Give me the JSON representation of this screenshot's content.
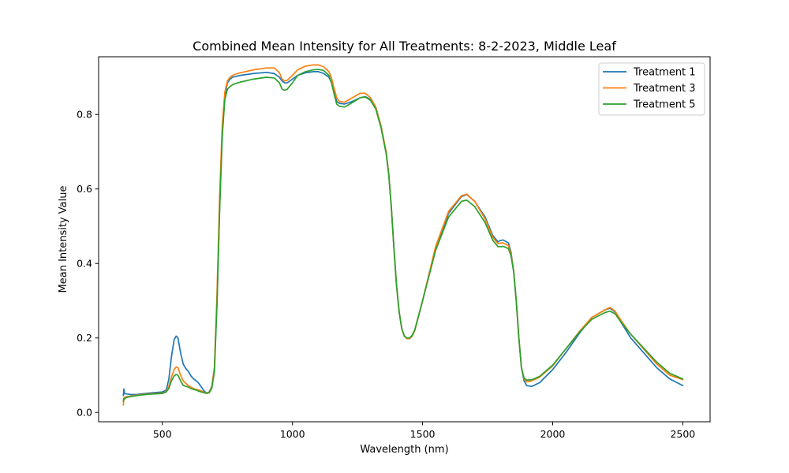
{
  "chart_data": {
    "type": "line",
    "title": "Combined Mean Intensity for All Treatments: 8-2-2023, Middle Leaf",
    "xlabel": "Wavelength (nm)",
    "ylabel": "Mean Intensity Value",
    "xlim": [
      255,
      2605
    ],
    "ylim": [
      -0.025,
      0.955
    ],
    "xticks": [
      500,
      1000,
      1500,
      2000,
      2500
    ],
    "xtick_labels": [
      "500",
      "1000",
      "1500",
      "2000",
      "2500"
    ],
    "yticks": [
      0.0,
      0.2,
      0.4,
      0.6,
      0.8
    ],
    "ytick_labels": [
      "0.0",
      "0.2",
      "0.4",
      "0.6",
      "0.8"
    ],
    "grid": false,
    "legend_position": "top-right",
    "series": [
      {
        "name": "Treatment 1",
        "color": "#1f77b4",
        "x": [
          350,
          352,
          355,
          360,
          380,
          400,
          420,
          450,
          480,
          500,
          515,
          525,
          535,
          545,
          553,
          560,
          570,
          580,
          590,
          600,
          610,
          620,
          630,
          640,
          650,
          660,
          670,
          680,
          690,
          700,
          710,
          720,
          730,
          740,
          750,
          760,
          770,
          780,
          800,
          850,
          900,
          930,
          950,
          960,
          970,
          980,
          1000,
          1020,
          1050,
          1080,
          1100,
          1120,
          1140,
          1150,
          1160,
          1170,
          1180,
          1200,
          1230,
          1260,
          1280,
          1300,
          1320,
          1340,
          1360,
          1370,
          1380,
          1390,
          1400,
          1410,
          1420,
          1430,
          1440,
          1450,
          1460,
          1470,
          1500,
          1550,
          1600,
          1650,
          1670,
          1700,
          1740,
          1770,
          1790,
          1800,
          1810,
          1830,
          1840,
          1850,
          1860,
          1870,
          1880,
          1890,
          1900,
          1920,
          1950,
          2000,
          2050,
          2100,
          2150,
          2200,
          2220,
          2240,
          2260,
          2300,
          2400,
          2450,
          2500
        ],
        "y": [
          0.045,
          0.063,
          0.05,
          0.05,
          0.048,
          0.048,
          0.05,
          0.052,
          0.054,
          0.055,
          0.06,
          0.09,
          0.15,
          0.195,
          0.205,
          0.2,
          0.16,
          0.13,
          0.118,
          0.11,
          0.098,
          0.09,
          0.085,
          0.078,
          0.068,
          0.058,
          0.052,
          0.055,
          0.07,
          0.12,
          0.3,
          0.55,
          0.75,
          0.85,
          0.885,
          0.895,
          0.9,
          0.902,
          0.905,
          0.91,
          0.913,
          0.91,
          0.9,
          0.89,
          0.885,
          0.885,
          0.895,
          0.905,
          0.912,
          0.915,
          0.915,
          0.91,
          0.9,
          0.885,
          0.86,
          0.835,
          0.83,
          0.828,
          0.835,
          0.845,
          0.848,
          0.84,
          0.82,
          0.77,
          0.7,
          0.64,
          0.55,
          0.44,
          0.34,
          0.27,
          0.225,
          0.205,
          0.198,
          0.198,
          0.205,
          0.22,
          0.3,
          0.44,
          0.535,
          0.58,
          0.585,
          0.567,
          0.525,
          0.475,
          0.458,
          0.462,
          0.463,
          0.455,
          0.43,
          0.38,
          0.3,
          0.2,
          0.12,
          0.085,
          0.072,
          0.07,
          0.08,
          0.115,
          0.16,
          0.21,
          0.255,
          0.275,
          0.28,
          0.27,
          0.245,
          0.2,
          0.12,
          0.09,
          0.072
        ]
      },
      {
        "name": "Treatment 3",
        "color": "#ff7f0e",
        "x": [
          350,
          352,
          355,
          360,
          380,
          400,
          420,
          450,
          480,
          500,
          515,
          525,
          535,
          545,
          553,
          560,
          570,
          580,
          590,
          600,
          610,
          620,
          630,
          640,
          650,
          660,
          670,
          680,
          690,
          700,
          710,
          720,
          730,
          740,
          750,
          760,
          770,
          780,
          800,
          850,
          900,
          930,
          950,
          960,
          970,
          980,
          1000,
          1020,
          1050,
          1080,
          1100,
          1120,
          1140,
          1150,
          1160,
          1170,
          1180,
          1200,
          1230,
          1260,
          1280,
          1300,
          1320,
          1340,
          1360,
          1370,
          1380,
          1390,
          1400,
          1410,
          1420,
          1430,
          1440,
          1450,
          1460,
          1470,
          1500,
          1550,
          1600,
          1650,
          1670,
          1700,
          1740,
          1770,
          1790,
          1800,
          1810,
          1830,
          1840,
          1850,
          1860,
          1870,
          1880,
          1890,
          1900,
          1920,
          1950,
          2000,
          2050,
          2100,
          2150,
          2200,
          2220,
          2240,
          2260,
          2300,
          2400,
          2450,
          2500
        ],
        "y": [
          0.02,
          0.035,
          0.04,
          0.042,
          0.044,
          0.046,
          0.048,
          0.05,
          0.051,
          0.052,
          0.056,
          0.07,
          0.095,
          0.115,
          0.122,
          0.12,
          0.1,
          0.085,
          0.078,
          0.072,
          0.068,
          0.064,
          0.062,
          0.06,
          0.058,
          0.054,
          0.052,
          0.054,
          0.068,
          0.12,
          0.32,
          0.58,
          0.77,
          0.86,
          0.89,
          0.9,
          0.905,
          0.908,
          0.912,
          0.92,
          0.925,
          0.925,
          0.912,
          0.895,
          0.89,
          0.892,
          0.905,
          0.92,
          0.93,
          0.933,
          0.933,
          0.928,
          0.915,
          0.898,
          0.87,
          0.845,
          0.835,
          0.833,
          0.845,
          0.857,
          0.857,
          0.845,
          0.82,
          0.77,
          0.7,
          0.64,
          0.55,
          0.44,
          0.34,
          0.27,
          0.225,
          0.205,
          0.198,
          0.198,
          0.205,
          0.22,
          0.3,
          0.445,
          0.54,
          0.582,
          0.586,
          0.567,
          0.52,
          0.47,
          0.453,
          0.455,
          0.455,
          0.448,
          0.425,
          0.38,
          0.3,
          0.2,
          0.12,
          0.09,
          0.082,
          0.085,
          0.095,
          0.125,
          0.17,
          0.215,
          0.255,
          0.275,
          0.282,
          0.272,
          0.25,
          0.21,
          0.13,
          0.1,
          0.088
        ]
      },
      {
        "name": "Treatment 5",
        "color": "#2ca02c",
        "x": [
          350,
          352,
          355,
          360,
          380,
          400,
          420,
          450,
          480,
          500,
          515,
          525,
          535,
          545,
          553,
          560,
          570,
          580,
          590,
          600,
          610,
          620,
          630,
          640,
          650,
          660,
          670,
          680,
          690,
          700,
          710,
          720,
          730,
          740,
          750,
          760,
          770,
          780,
          800,
          850,
          900,
          930,
          950,
          960,
          970,
          980,
          1000,
          1020,
          1050,
          1080,
          1100,
          1120,
          1140,
          1150,
          1160,
          1170,
          1180,
          1200,
          1230,
          1260,
          1280,
          1300,
          1320,
          1340,
          1360,
          1370,
          1380,
          1390,
          1400,
          1410,
          1420,
          1430,
          1440,
          1450,
          1460,
          1470,
          1500,
          1550,
          1600,
          1650,
          1670,
          1700,
          1740,
          1770,
          1790,
          1800,
          1810,
          1830,
          1840,
          1850,
          1860,
          1870,
          1880,
          1890,
          1900,
          1920,
          1950,
          2000,
          2050,
          2100,
          2150,
          2200,
          2220,
          2240,
          2260,
          2300,
          2400,
          2450,
          2500
        ],
        "y": [
          0.03,
          0.038,
          0.036,
          0.04,
          0.043,
          0.045,
          0.047,
          0.049,
          0.05,
          0.051,
          0.055,
          0.065,
          0.085,
          0.098,
          0.102,
          0.1,
          0.085,
          0.073,
          0.07,
          0.068,
          0.064,
          0.062,
          0.06,
          0.057,
          0.055,
          0.053,
          0.051,
          0.053,
          0.065,
          0.11,
          0.29,
          0.54,
          0.74,
          0.84,
          0.868,
          0.875,
          0.88,
          0.883,
          0.887,
          0.895,
          0.9,
          0.898,
          0.885,
          0.868,
          0.865,
          0.868,
          0.885,
          0.905,
          0.915,
          0.92,
          0.921,
          0.918,
          0.905,
          0.885,
          0.855,
          0.828,
          0.822,
          0.82,
          0.832,
          0.845,
          0.847,
          0.838,
          0.815,
          0.765,
          0.695,
          0.638,
          0.55,
          0.44,
          0.34,
          0.27,
          0.225,
          0.205,
          0.2,
          0.2,
          0.207,
          0.222,
          0.3,
          0.435,
          0.525,
          0.567,
          0.57,
          0.553,
          0.51,
          0.462,
          0.445,
          0.445,
          0.446,
          0.44,
          0.42,
          0.378,
          0.3,
          0.2,
          0.12,
          0.092,
          0.087,
          0.088,
          0.097,
          0.127,
          0.17,
          0.213,
          0.25,
          0.268,
          0.272,
          0.265,
          0.245,
          0.21,
          0.135,
          0.105,
          0.09
        ]
      }
    ]
  }
}
